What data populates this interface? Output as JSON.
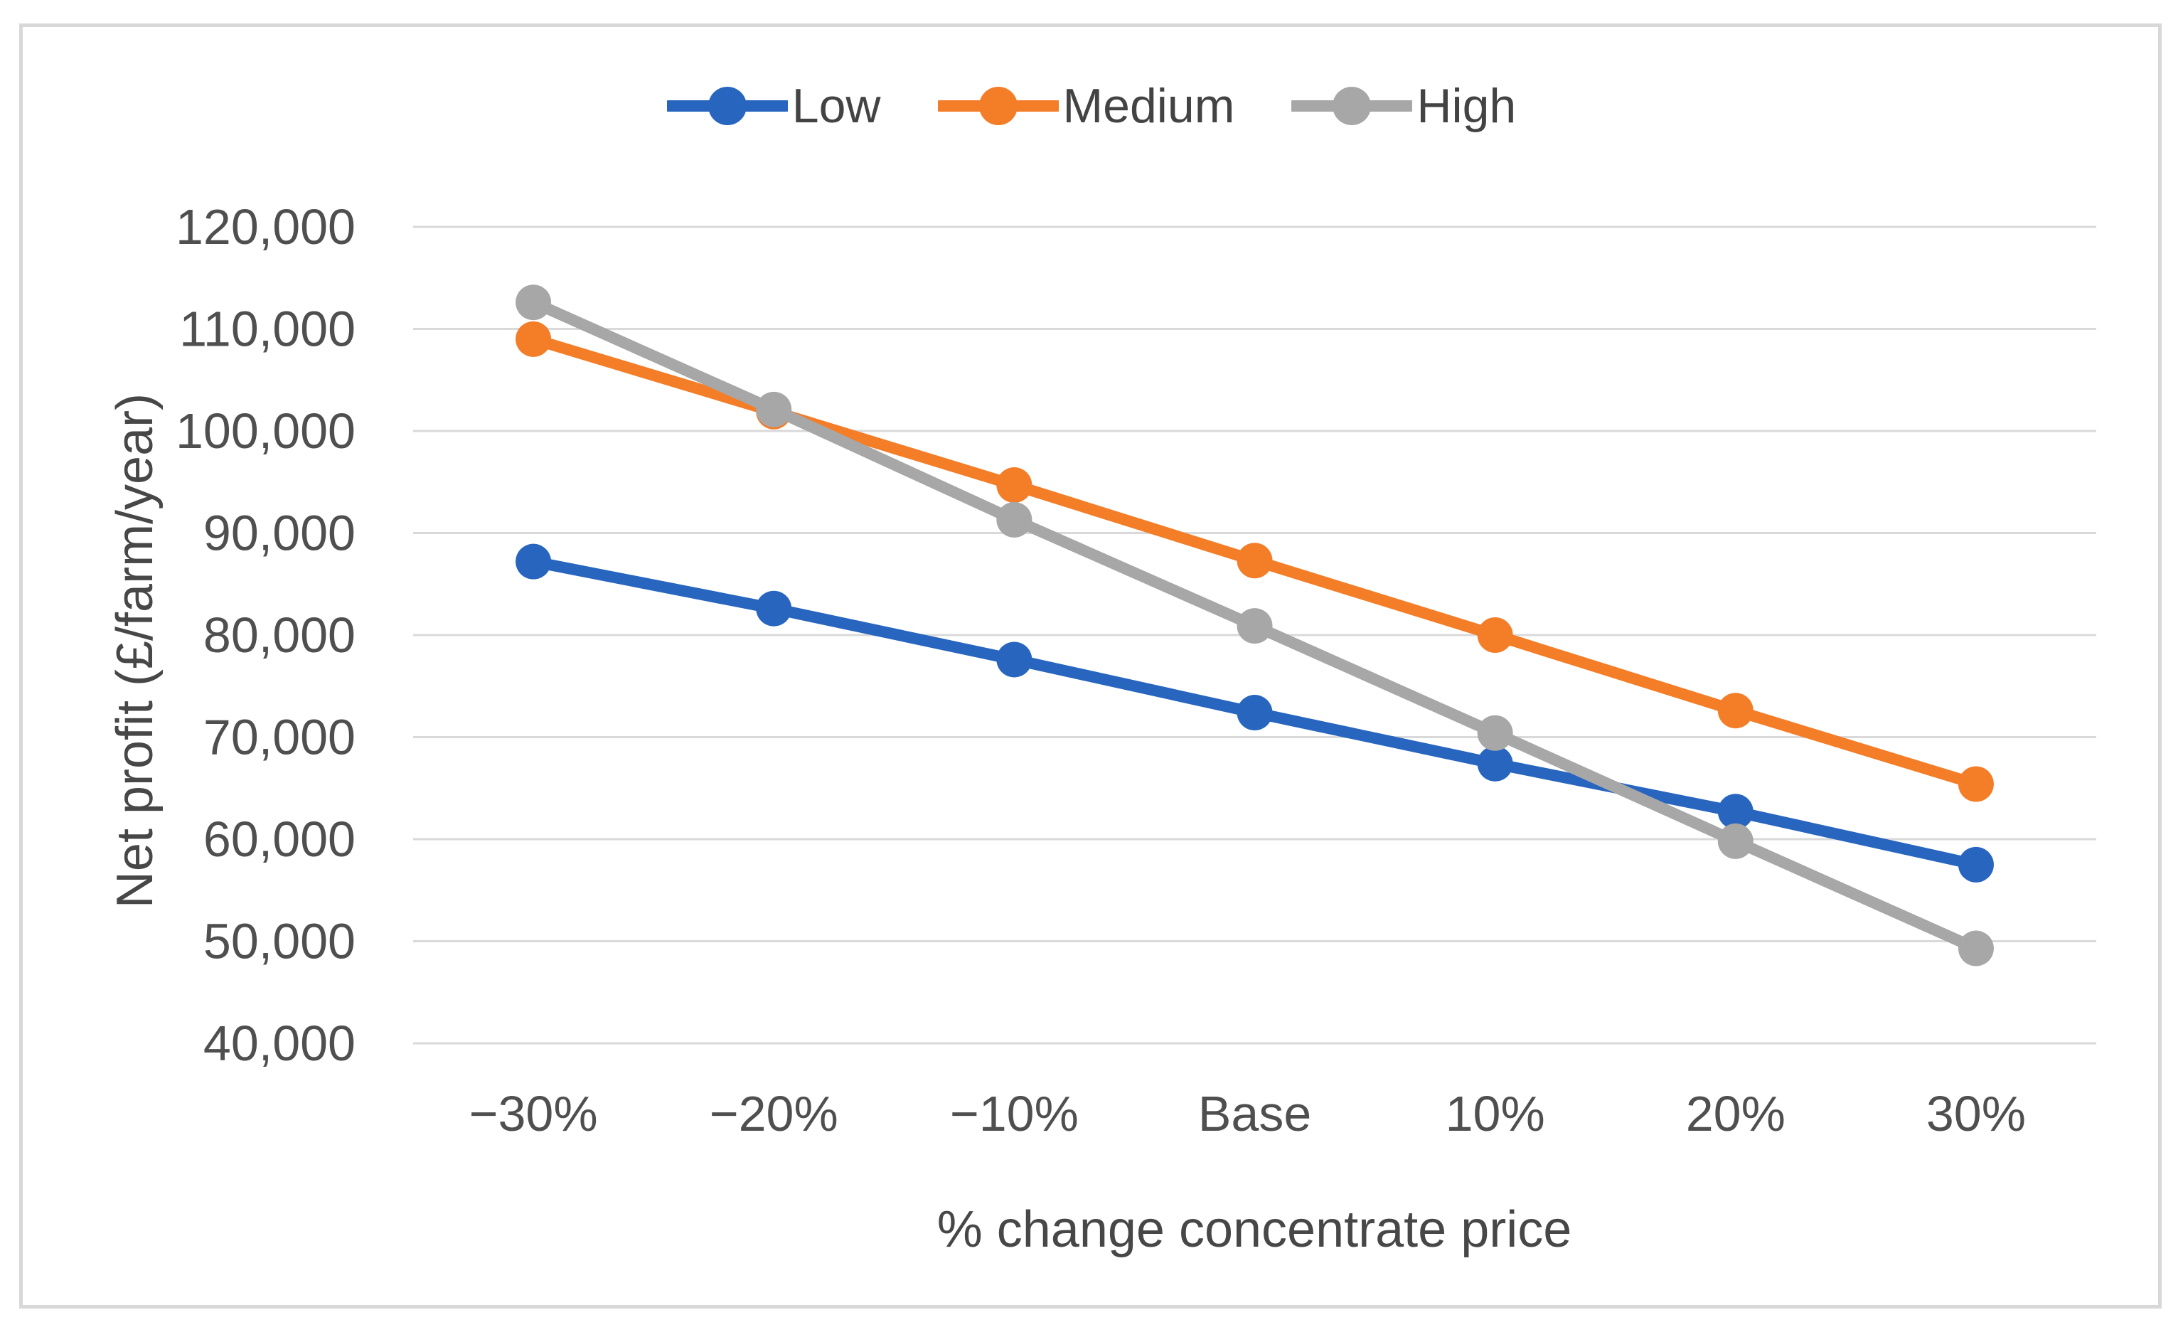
{
  "figure": {
    "background": "#FFFFFF",
    "border_color": "#D8D8D8"
  },
  "legend": {
    "items": [
      {
        "label": "Low"
      },
      {
        "label": "Medium"
      },
      {
        "label": "High"
      }
    ]
  },
  "chart_data": {
    "type": "line",
    "categories": [
      "−30%",
      "−20%",
      "−10%",
      "Base",
      "10%",
      "20%",
      "30%"
    ],
    "series": [
      {
        "name": "Low",
        "color": "#2765BF",
        "values": [
          87200,
          82600,
          77600,
          72400,
          67400,
          62700,
          57500
        ]
      },
      {
        "name": "Medium",
        "color": "#F47D28",
        "values": [
          109000,
          101900,
          94700,
          87300,
          80000,
          72600,
          65400
        ]
      },
      {
        "name": "High",
        "color": "#A7A7A7",
        "values": [
          112600,
          102100,
          91300,
          80900,
          70400,
          59800,
          49300
        ]
      }
    ],
    "title": "",
    "xlabel": "% change concentrate price",
    "ylabel": "Net profit (£/farm/year)",
    "ylim": [
      40000,
      120000
    ],
    "ytick_step": 10000,
    "ytick_labels": [
      "40,000",
      "50,000",
      "60,000",
      "70,000",
      "80,000",
      "90,000",
      "100,000",
      "110,000",
      "120,000"
    ],
    "grid": true,
    "gridline_color": "#D9D9D9",
    "tick_label_color": "#4F4F4F",
    "axis_title_color": "#474747",
    "legend_position": "top",
    "marker": "circle"
  }
}
